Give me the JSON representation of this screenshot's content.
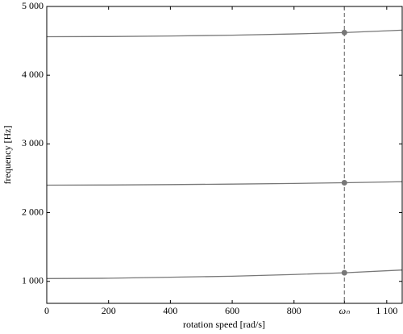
{
  "chart_data": {
    "type": "line",
    "x_label": "rotation speed [rad/s]",
    "y_label": "frequency [Hz]",
    "x": [
      0,
      200,
      400,
      600,
      800,
      963,
      1150
    ],
    "series": [
      {
        "color": "#777777",
        "values": [
          4560,
          4562,
          4570,
          4582,
          4600,
          4620,
          4655
        ]
      },
      {
        "color": "#777777",
        "values": [
          2400,
          2402,
          2408,
          2415,
          2425,
          2435,
          2450
        ]
      },
      {
        "color": "#777777",
        "values": [
          1040,
          1045,
          1060,
          1075,
          1100,
          1125,
          1165
        ]
      }
    ],
    "vline_x": 963,
    "vline_style": "dashed",
    "xlim": [
      0,
      1150
    ],
    "ylim": [
      680,
      5000
    ],
    "xticks": [
      0,
      200,
      400,
      600,
      800,
      {
        "value": 963,
        "label": "ωₙ"
      },
      {
        "value": 1100,
        "label": "1 100"
      }
    ],
    "yticks": [
      {
        "value": 1000,
        "label": "1 000"
      },
      {
        "value": 2000,
        "label": "2 000"
      },
      {
        "value": 3000,
        "label": "3 000"
      },
      {
        "value": 4000,
        "label": "4 000"
      },
      {
        "value": 5000,
        "label": "5 000"
      }
    ],
    "grid": false
  }
}
